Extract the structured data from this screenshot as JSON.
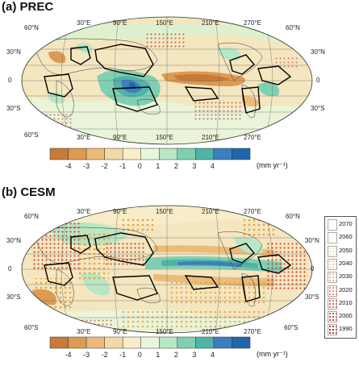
{
  "panels": [
    {
      "id": "a",
      "title": "(a) PREC",
      "lon_top": [
        "30°E",
        "90°E",
        "150°E",
        "210°E",
        "270°E"
      ],
      "lon_bottom": [
        "30°E",
        "90°E",
        "150°E",
        "210°E",
        "270°E"
      ],
      "lat_left": [
        "60°N",
        "30°N",
        "0",
        "30°S",
        "60°S"
      ],
      "lat_right": [
        "60°N",
        "30°N",
        "0",
        "30°S"
      ]
    },
    {
      "id": "b",
      "title": "(b) CESM",
      "lon_top": [
        "30°E",
        "90°E",
        "150°E",
        "210°E",
        "270°E"
      ],
      "lon_bottom": [
        "30°E",
        "90°E",
        "150°E",
        "210°E",
        "270°E"
      ],
      "lat_left": [
        "60°N",
        "30°N",
        "0",
        "30°S",
        "60°S"
      ],
      "lat_right": [
        "60°N",
        "30°N",
        "0",
        "30°S",
        "60°S"
      ]
    }
  ],
  "colorbar": {
    "ticks": [
      "-4",
      "-3",
      "-2",
      "-1",
      "0",
      "1",
      "2",
      "3",
      "4"
    ],
    "units": "(mm yr⁻¹)",
    "colors": [
      "#c87a3a",
      "#dd9a52",
      "#ebbb78",
      "#f3d9a3",
      "#f8edc8",
      "#e8f6dc",
      "#b8e7c4",
      "#7fd0b2",
      "#4fb4a8",
      "#3b7fbf",
      "#2166ac"
    ]
  },
  "year_legend": {
    "entries": [
      "2070",
      "2060",
      "2050",
      "2040",
      "2030",
      "2020",
      "2010",
      "2000",
      "1990"
    ],
    "colors": [
      "#ffffff",
      "#fff4e8",
      "#ffe0c0",
      "#ffc890",
      "#f7a870",
      "#ee8450",
      "#e05838",
      "#cc3828",
      "#b01818"
    ]
  }
}
